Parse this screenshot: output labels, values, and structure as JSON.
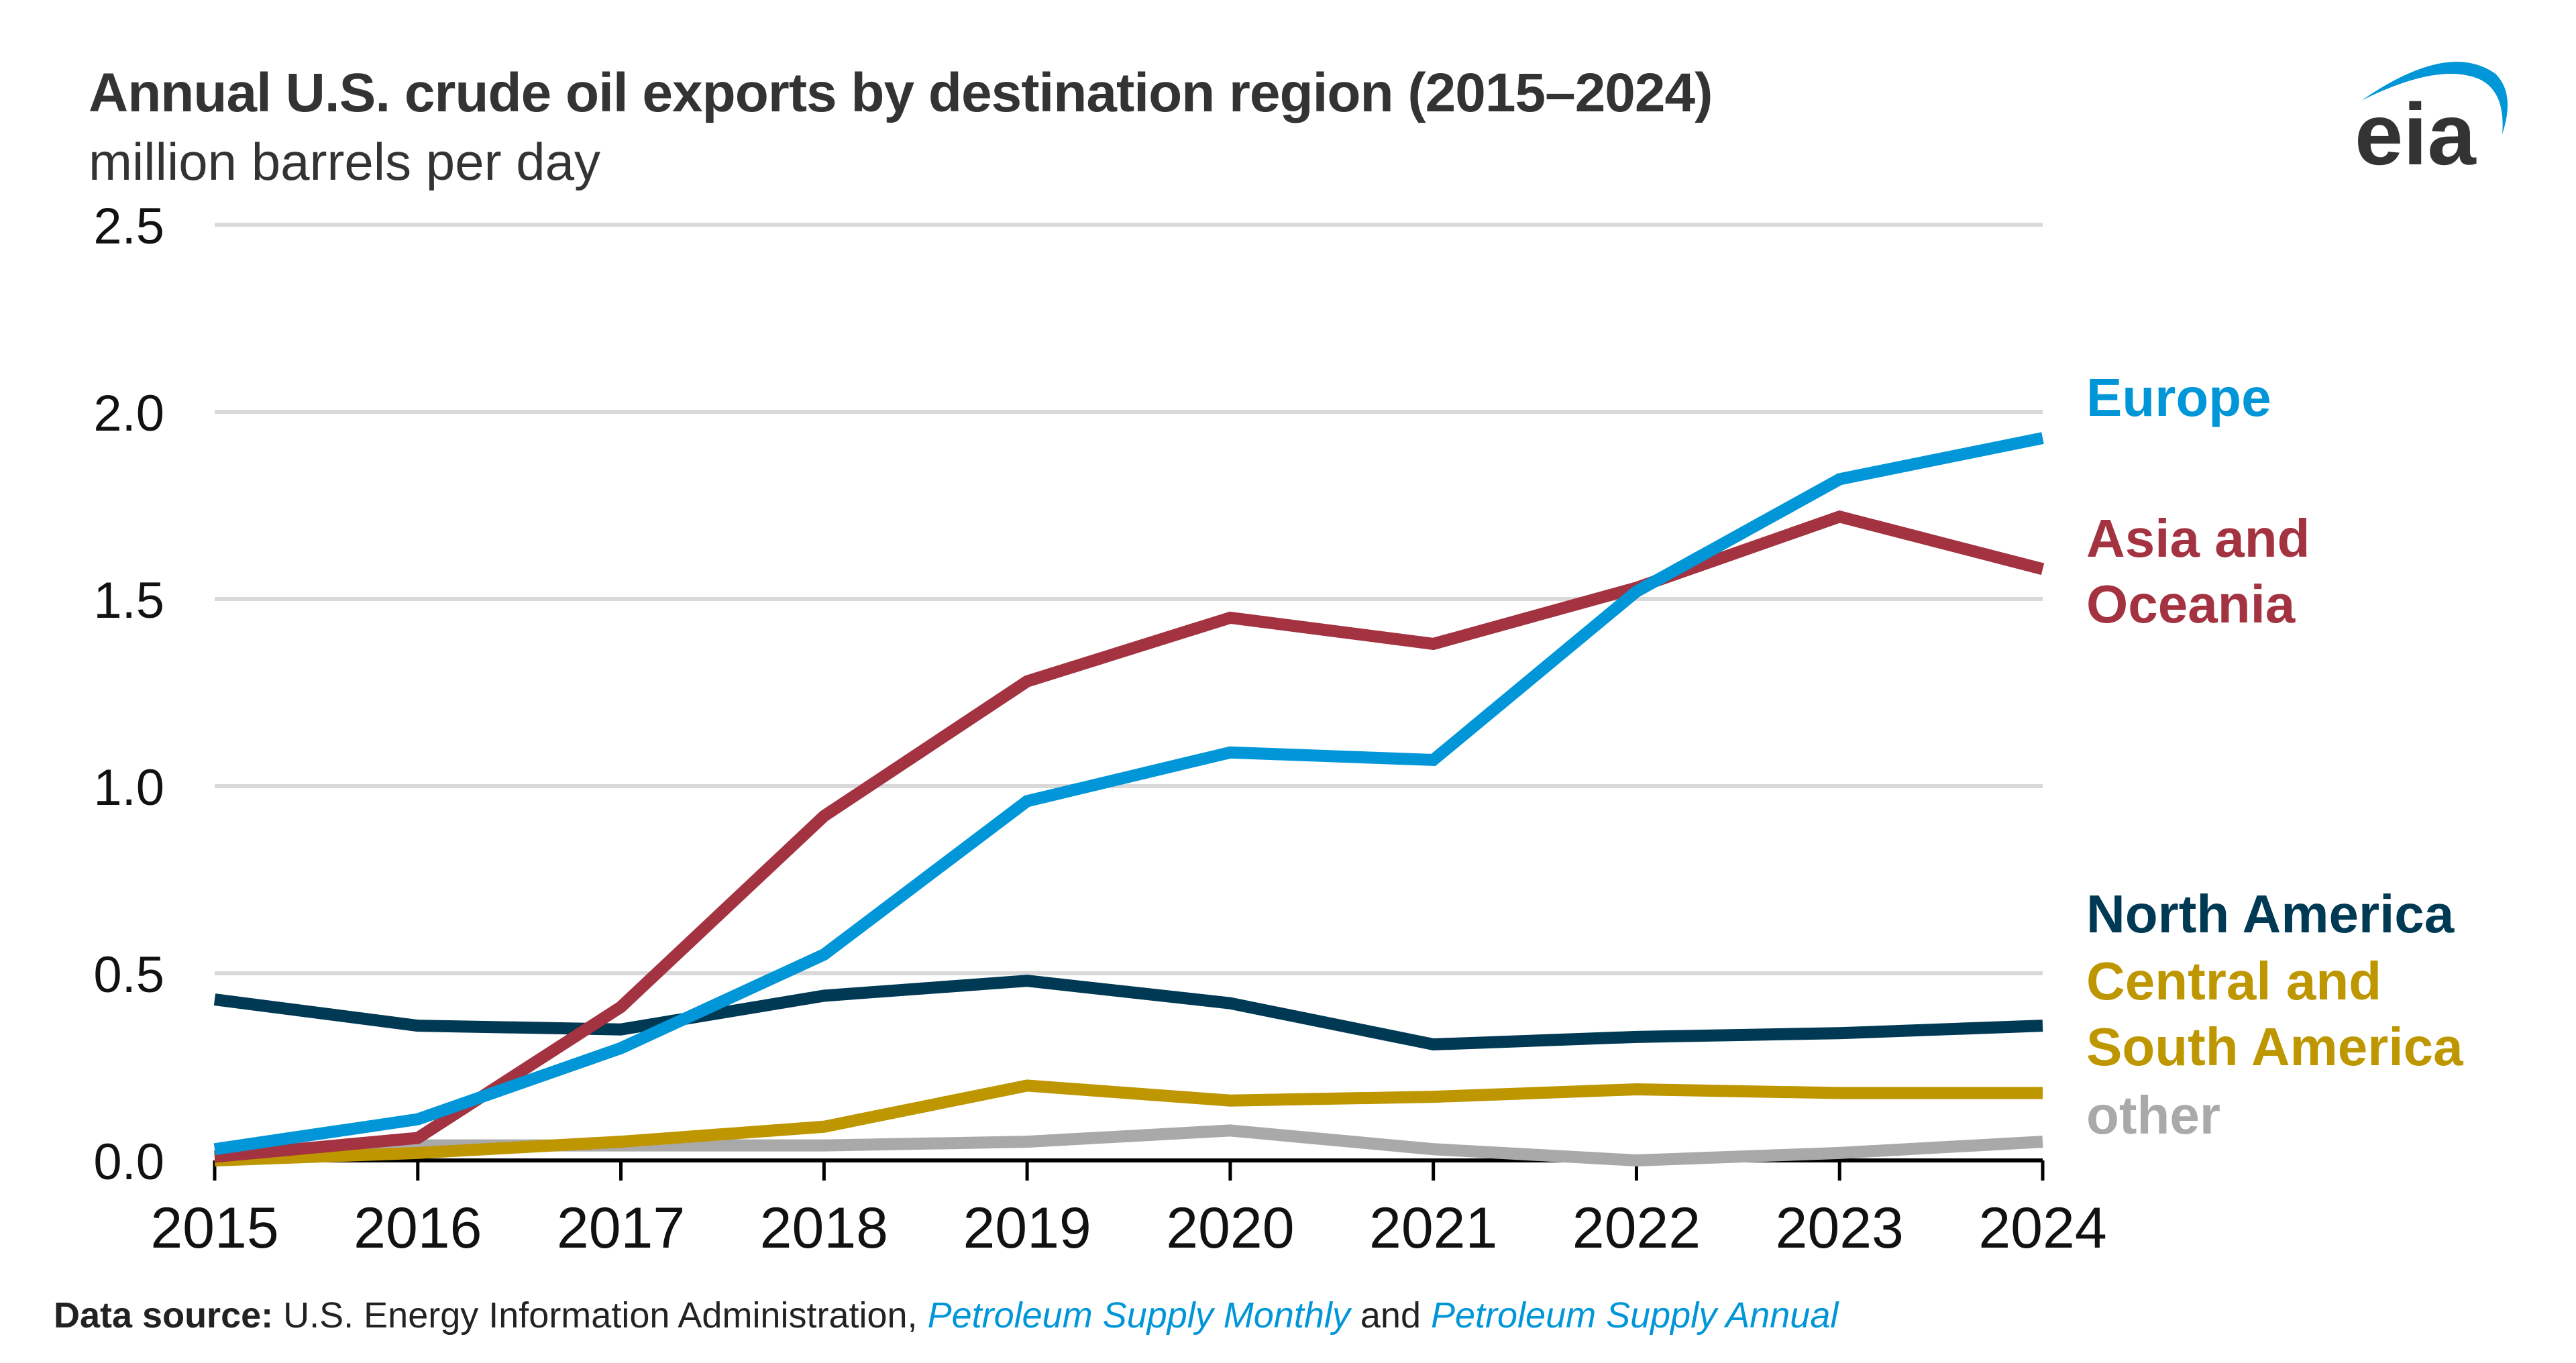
{
  "header": {
    "title": "Annual U.S. crude oil exports by destination region (2015–2024)",
    "subtitle": "million barrels per day",
    "logo_text": "eia",
    "logo_icon": "eia-swoosh-logo"
  },
  "footer": {
    "label": "Data source:",
    "text1": " U.S. Energy Information Administration, ",
    "pub1": "Petroleum Supply Monthly",
    "text2": " and ",
    "pub2": "Petroleum Supply Annual"
  },
  "chart_data": {
    "type": "line",
    "title": "Annual U.S. crude oil exports by destination region (2015–2024)",
    "ylabel": "million barrels per day",
    "xlabel": "",
    "x": [
      2015,
      2016,
      2017,
      2018,
      2019,
      2020,
      2021,
      2022,
      2023,
      2024
    ],
    "ylim": [
      0,
      2.5
    ],
    "yticks": [
      "0.0",
      "0.5",
      "1.0",
      "1.5",
      "2.0",
      "2.5"
    ],
    "grid": true,
    "legend": "direct labels at right end of lines",
    "series": [
      {
        "name": "Europe",
        "label_lines": [
          "Europe"
        ],
        "color": "#0096d7",
        "values": [
          0.03,
          0.11,
          0.3,
          0.55,
          0.96,
          1.09,
          1.07,
          1.52,
          1.82,
          1.93
        ]
      },
      {
        "name": "Asia and Oceania",
        "label_lines": [
          "Asia and",
          "Oceania"
        ],
        "color": "#a33340",
        "values": [
          0.01,
          0.06,
          0.41,
          0.92,
          1.28,
          1.45,
          1.38,
          1.53,
          1.72,
          1.58
        ]
      },
      {
        "name": "North America",
        "label_lines": [
          "North America"
        ],
        "color": "#003953",
        "values": [
          0.43,
          0.36,
          0.35,
          0.44,
          0.48,
          0.42,
          0.31,
          0.33,
          0.34,
          0.36
        ]
      },
      {
        "name": "Central and South America",
        "label_lines": [
          "Central and",
          "South America"
        ],
        "color": "#bd9600",
        "values": [
          0.0,
          0.02,
          0.05,
          0.09,
          0.2,
          0.16,
          0.17,
          0.19,
          0.18,
          0.18
        ]
      },
      {
        "name": "other",
        "label_lines": [
          "other"
        ],
        "color": "#a9a9a9",
        "values": [
          0.01,
          0.04,
          0.04,
          0.04,
          0.05,
          0.08,
          0.03,
          0.0,
          0.02,
          0.05
        ]
      }
    ]
  }
}
